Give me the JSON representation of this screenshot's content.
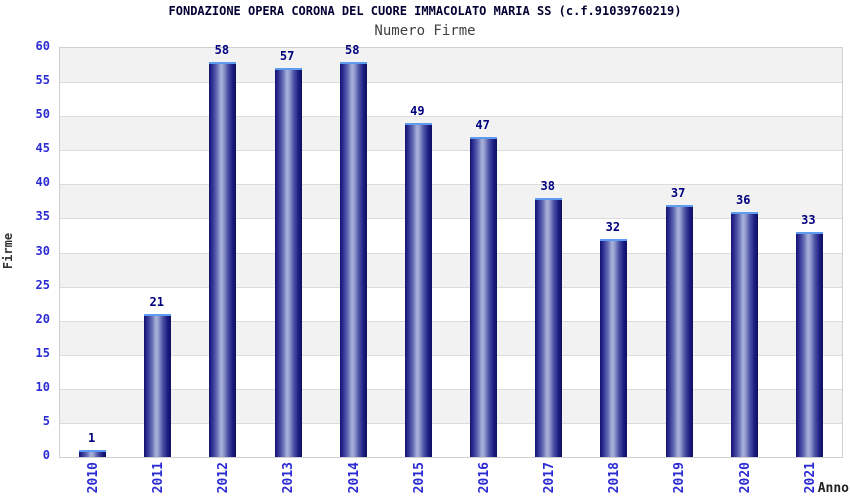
{
  "chart_data": {
    "type": "bar",
    "title": "FONDAZIONE OPERA CORONA DEL CUORE IMMACOLATO MARIA SS (c.f.91039760219)",
    "subtitle": "Numero Firme",
    "categories": [
      "2010",
      "2011",
      "2012",
      "2013",
      "2014",
      "2015",
      "2016",
      "2017",
      "2018",
      "2019",
      "2020",
      "2021"
    ],
    "values": [
      1,
      21,
      58,
      57,
      58,
      49,
      47,
      38,
      32,
      37,
      36,
      33
    ],
    "xlabel": "Anno",
    "ylabel": "Firme",
    "ylim": [
      0,
      60
    ],
    "ytick_step": 5,
    "grid": "horizontal-bands-alternating",
    "legend": "none"
  },
  "colors": {
    "title": "#000033",
    "subtitle": "#404040",
    "tick_label": "#2b2bd4",
    "value_label": "#00007e",
    "axis_label": "#333333",
    "band_gray": "#f2f2f2",
    "band_white": "#ffffff",
    "gridline": "#dcdcdc",
    "plot_border": "#d0d0d0",
    "bar_dark": "#14146e",
    "bar_light": "#a9b0da",
    "bar_cap": "#5d9bee"
  }
}
